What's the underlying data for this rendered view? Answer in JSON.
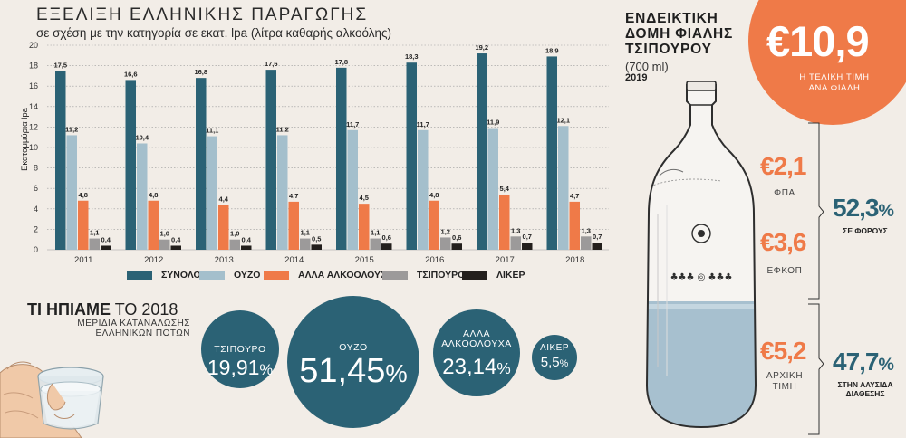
{
  "chart": {
    "title": "ΕΞΕΛΙΞΗ ΕΛΛΗΝΙΚΗΣ ΠΑΡΑΓΩΓΗΣ",
    "subtitle": "σε σχέση με την κατηγορία σε εκατ. lpa (λίτρα καθαρής αλκοόλης)"
  },
  "chart_data": {
    "type": "bar",
    "title": "ΕΞΕΛΙΞΗ ΕΛΛΗΝΙΚΗΣ ΠΑΡΑΓΩΓΗΣ",
    "subtitle": "σε σχέση με την κατηγορία σε εκατ. lpa (λίτρα καθαρής αλκοόλης)",
    "xlabel": "",
    "ylabel": "Εκατομμύρια lpa",
    "ylim": [
      0,
      20
    ],
    "yticks": [
      0,
      2,
      4,
      6,
      8,
      10,
      12,
      14,
      16,
      18,
      20
    ],
    "grid": true,
    "legend": "bottom",
    "categories": [
      "2011",
      "2012",
      "2013",
      "2014",
      "2015",
      "2016",
      "2017",
      "2018"
    ],
    "series": [
      {
        "name": "ΣΥΝΟΛΟ",
        "color": "#2b6275",
        "values": [
          17.5,
          16.6,
          16.8,
          17.6,
          17.8,
          18.3,
          19.2,
          18.9
        ],
        "labels": [
          "17,5",
          "16,6",
          "16,8",
          "17,6",
          "17,8",
          "18,3",
          "19,2",
          "18,9"
        ]
      },
      {
        "name": "ΟΥΖΟ",
        "color": "#a4bfcc",
        "values": [
          11.2,
          10.4,
          11.1,
          11.2,
          11.7,
          11.7,
          11.9,
          12.1
        ],
        "labels": [
          "11,2",
          "10,4",
          "11,1",
          "11,2",
          "11,7",
          "11,7",
          "11,9",
          "12,1"
        ]
      },
      {
        "name": "ΑΛΛΑ ΑΛΚΟΟΛΟΥΧΑ",
        "color": "#ef7a48",
        "values": [
          4.8,
          4.8,
          4.4,
          4.7,
          4.5,
          4.8,
          5.4,
          4.7
        ],
        "labels": [
          "4,8",
          "4,8",
          "4,4",
          "4,7",
          "4,5",
          "4,8",
          "5,4",
          "4,7"
        ]
      },
      {
        "name": "ΤΣΙΠΟΥΡΟ",
        "color": "#9c9a9a",
        "values": [
          1.1,
          1.0,
          1.0,
          1.1,
          1.1,
          1.2,
          1.3,
          1.3
        ],
        "labels": [
          "1,1",
          "1,0",
          "1,0",
          "1,1",
          "1,1",
          "1,2",
          "1,3",
          "1,3"
        ]
      },
      {
        "name": "ΛΙΚΕΡ",
        "color": "#231f1c",
        "values": [
          0.4,
          0.4,
          0.4,
          0.5,
          0.6,
          0.6,
          0.7,
          0.7
        ],
        "labels": [
          "0,4",
          "0,4",
          "0,4",
          "0,5",
          "0,6",
          "0,6",
          "0,7",
          "0,7"
        ]
      }
    ]
  },
  "drinks": {
    "title_bold": "ΤΙ ΗΠΙΑΜΕ",
    "title_rest": "ΤΟ 2018",
    "subtitle_line1": "ΜΕΡΙΔΙΑ ΚΑΤΑΝΑΛΩΣΗΣ",
    "subtitle_line2": "ΕΛΛΗΝΙΚΩΝ ΠΟΤΩΝ",
    "items": [
      {
        "label": "ΤΣΙΠΟΥΡΟ",
        "value": "19,91",
        "unit": "%"
      },
      {
        "label": "ΟΥΖΟ",
        "value": "51,45",
        "unit": "%"
      },
      {
        "label_line1": "ΑΛΛΑ",
        "label_line2": "ΑΛΚΟΟΛΟΥΧΑ",
        "value": "23,14",
        "unit": "%"
      },
      {
        "label": "ΛΙΚΕΡ",
        "value": "5,5",
        "unit": "%"
      }
    ],
    "share_values": [
      19.91,
      51.45,
      23.14,
      5.5
    ]
  },
  "bottle": {
    "title_line1": "ΕΝΔΕΙΚΤΙΚΗ",
    "title_line2": "ΔΟΜΗ ΦΙΑΛΗΣ",
    "title_line3": "ΤΣΙΠΟΥΡΟΥ",
    "volume": "(700 ml)",
    "year": "2019",
    "total_price": "€10,9",
    "total_label_line1": "Η ΤΕΛΙΚΗ ΤΙΜΗ",
    "total_label_line2": "ΑΝΑ ΦΙΑΛΗ",
    "fpa_value": "€2,1",
    "fpa_label": "ΦΠΑ",
    "efkop_value": "€3,6",
    "efkop_label": "ΕΦΚΟΠ",
    "initial_value": "€5,2",
    "initial_label_line1": "ΑΡΧΙΚΗ",
    "initial_label_line2": "ΤΙΜΗ",
    "tax_share": "52,3",
    "tax_share_unit": "%",
    "tax_label": "ΣΕ ΦΟΡΟΥΣ",
    "chain_share": "47,7",
    "chain_share_unit": "%",
    "chain_label_line1": "ΣΤΗΝ ΑΛΥΣΙΔΑ",
    "chain_label_line2": "ΔΙΑΘΕΣΗΣ"
  }
}
